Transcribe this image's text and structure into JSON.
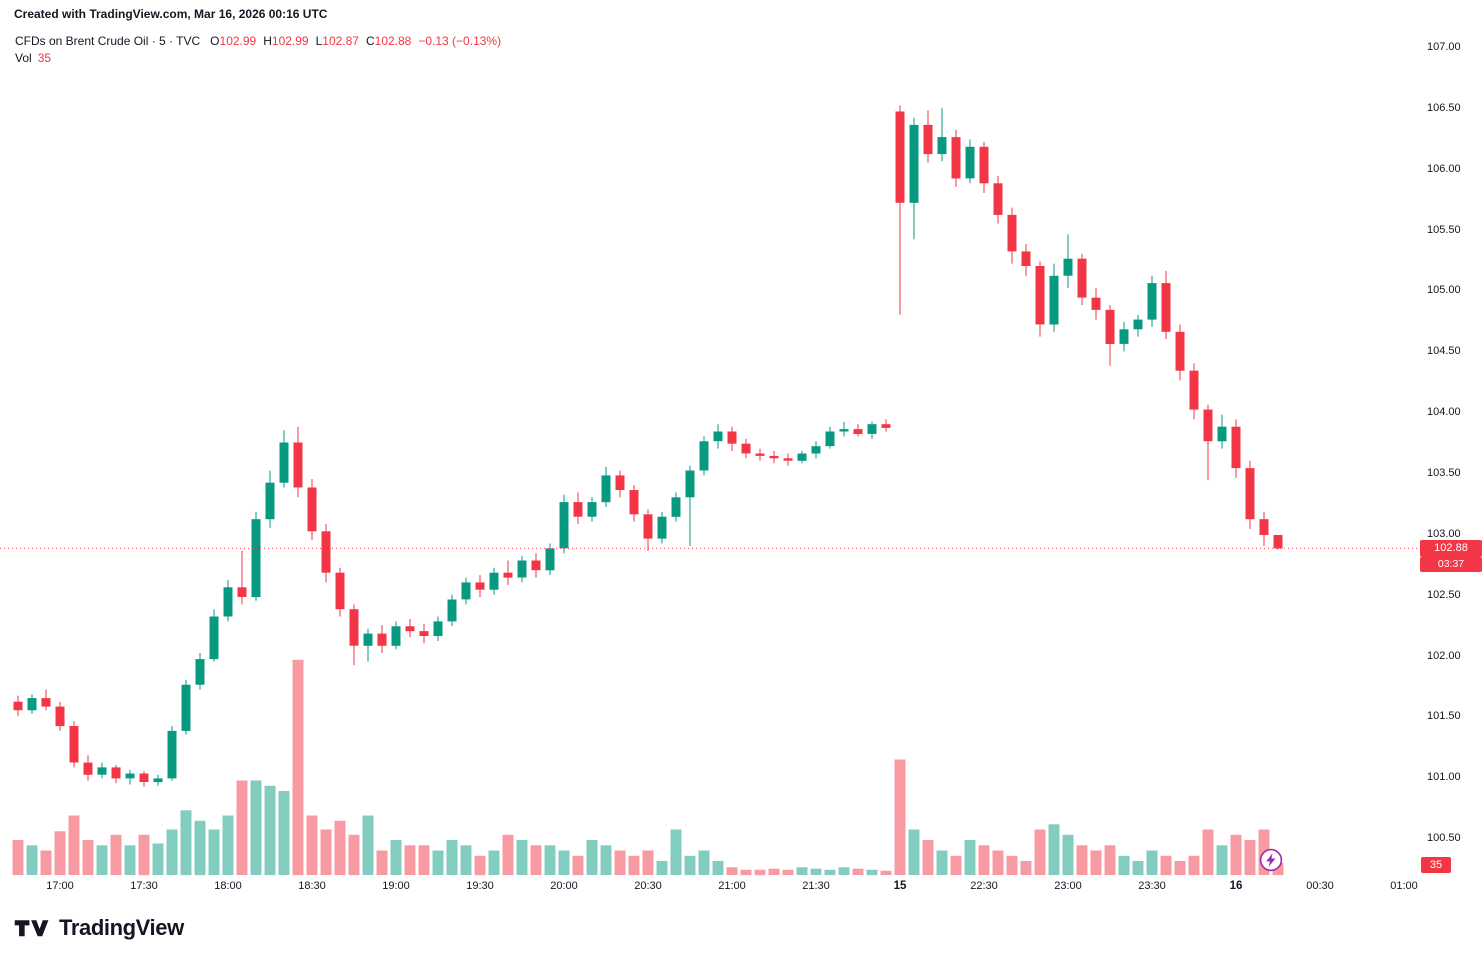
{
  "header": {
    "attribution": "Created with TradingView.com, Mar 16, 2026 00:16 UTC"
  },
  "legend": {
    "symbol": "CFDs on Brent Crude Oil · 5 · TVC",
    "o_label": "O",
    "o": "102.99",
    "h_label": "H",
    "h": "102.99",
    "l_label": "L",
    "l": "102.87",
    "c_label": "C",
    "c": "102.88",
    "change": "−0.13 (−0.13%)",
    "vol_label": "Vol",
    "vol_value": "35"
  },
  "badges": {
    "price": "102.88",
    "countdown": "03:37",
    "volume": "35"
  },
  "logo": {
    "text": "TradingView"
  },
  "colors": {
    "up": "#089981",
    "down": "#F23645",
    "vol_up": "rgba(8,153,129,0.5)",
    "vol_down": "rgba(242,54,69,0.5)",
    "text": "#131722",
    "badge_text": "#ffffff",
    "bolt": "#9c27b0"
  },
  "chart_data": {
    "type": "candlestick",
    "title": "CFDs on Brent Crude Oil",
    "interval": "5",
    "exchange": "TVC",
    "last": {
      "o": 102.99,
      "h": 102.99,
      "l": 102.87,
      "c": 102.88,
      "change": "−0.13 (−0.13%)",
      "volume": 35
    },
    "price_line": 102.88,
    "countdown": "03:37",
    "ylim": [
      100.2,
      107.15
    ],
    "grid": false,
    "y_ticks": [
      107.0,
      106.5,
      106.0,
      105.5,
      105.0,
      104.5,
      104.0,
      103.5,
      103.0,
      102.5,
      102.0,
      101.5,
      101.0,
      100.5
    ],
    "x_ticks": [
      {
        "label": "17:00",
        "i": 3
      },
      {
        "label": "17:30",
        "i": 9
      },
      {
        "label": "18:00",
        "i": 15
      },
      {
        "label": "18:30",
        "i": 21
      },
      {
        "label": "19:00",
        "i": 27
      },
      {
        "label": "19:30",
        "i": 33
      },
      {
        "label": "20:00",
        "i": 39
      },
      {
        "label": "20:30",
        "i": 45
      },
      {
        "label": "21:00",
        "i": 51
      },
      {
        "label": "21:30",
        "i": 57
      },
      {
        "label": "15",
        "i": 63,
        "bold": true
      },
      {
        "label": "22:30",
        "i": 69
      },
      {
        "label": "23:00",
        "i": 75
      },
      {
        "label": "23:30",
        "i": 81
      },
      {
        "label": "16",
        "i": 87,
        "bold": true
      },
      {
        "label": "00:30",
        "i": 93
      },
      {
        "label": "01:00",
        "i": 99
      }
    ],
    "candles_format": [
      "time",
      "open",
      "high",
      "low",
      "close",
      "volume"
    ],
    "candles": [
      [
        "16:45",
        101.62,
        101.67,
        101.5,
        101.55,
        100
      ],
      [
        "16:50",
        101.55,
        101.68,
        101.52,
        101.65,
        85
      ],
      [
        "16:55",
        101.65,
        101.72,
        101.55,
        101.58,
        70
      ],
      [
        "17:00",
        101.58,
        101.62,
        101.38,
        101.42,
        125
      ],
      [
        "17:05",
        101.42,
        101.46,
        101.08,
        101.12,
        170
      ],
      [
        "17:10",
        101.12,
        101.18,
        100.97,
        101.02,
        100
      ],
      [
        "17:15",
        101.02,
        101.12,
        100.99,
        101.08,
        85
      ],
      [
        "17:20",
        101.08,
        101.1,
        100.95,
        100.99,
        115
      ],
      [
        "17:25",
        100.99,
        101.06,
        100.94,
        101.03,
        85
      ],
      [
        "17:30",
        101.03,
        101.05,
        100.92,
        100.96,
        115
      ],
      [
        "17:35",
        100.96,
        101.02,
        100.93,
        100.99,
        90
      ],
      [
        "17:40",
        100.99,
        101.42,
        100.97,
        101.38,
        130
      ],
      [
        "17:45",
        101.38,
        101.8,
        101.35,
        101.76,
        185
      ],
      [
        "17:50",
        101.76,
        102.02,
        101.72,
        101.97,
        155
      ],
      [
        "17:55",
        101.97,
        102.38,
        101.95,
        102.32,
        130
      ],
      [
        "18:00",
        102.32,
        102.62,
        102.28,
        102.56,
        170
      ],
      [
        "18:05",
        102.56,
        102.86,
        102.42,
        102.48,
        270
      ],
      [
        "18:10",
        102.48,
        103.18,
        102.45,
        103.12,
        270
      ],
      [
        "18:15",
        103.12,
        103.52,
        103.05,
        103.42,
        255
      ],
      [
        "18:20",
        103.42,
        103.85,
        103.38,
        103.75,
        240
      ],
      [
        "18:25",
        103.75,
        103.88,
        103.3,
        103.38,
        615
      ],
      [
        "18:30",
        103.38,
        103.45,
        102.95,
        103.02,
        170
      ],
      [
        "18:35",
        103.02,
        103.08,
        102.6,
        102.68,
        130
      ],
      [
        "18:40",
        102.68,
        102.72,
        102.32,
        102.38,
        155
      ],
      [
        "18:45",
        102.38,
        102.42,
        101.92,
        102.08,
        115
      ],
      [
        "18:50",
        102.08,
        102.22,
        101.95,
        102.18,
        170
      ],
      [
        "18:55",
        102.18,
        102.25,
        102.02,
        102.08,
        70
      ],
      [
        "19:00",
        102.08,
        102.28,
        102.05,
        102.24,
        100
      ],
      [
        "19:05",
        102.24,
        102.3,
        102.15,
        102.2,
        85
      ],
      [
        "19:10",
        102.2,
        102.26,
        102.1,
        102.16,
        85
      ],
      [
        "19:15",
        102.16,
        102.32,
        102.12,
        102.28,
        70
      ],
      [
        "19:20",
        102.28,
        102.5,
        102.24,
        102.46,
        100
      ],
      [
        "19:25",
        102.46,
        102.64,
        102.42,
        102.6,
        85
      ],
      [
        "19:30",
        102.6,
        102.66,
        102.48,
        102.54,
        55
      ],
      [
        "19:35",
        102.54,
        102.72,
        102.5,
        102.68,
        70
      ],
      [
        "19:40",
        102.68,
        102.78,
        102.58,
        102.64,
        115
      ],
      [
        "19:45",
        102.64,
        102.82,
        102.6,
        102.78,
        100
      ],
      [
        "19:50",
        102.78,
        102.84,
        102.64,
        102.7,
        85
      ],
      [
        "19:55",
        102.7,
        102.92,
        102.66,
        102.88,
        85
      ],
      [
        "20:00",
        102.88,
        103.32,
        102.84,
        103.26,
        70
      ],
      [
        "20:05",
        103.26,
        103.34,
        103.08,
        103.14,
        55
      ],
      [
        "20:10",
        103.14,
        103.3,
        103.1,
        103.26,
        100
      ],
      [
        "20:15",
        103.26,
        103.55,
        103.22,
        103.48,
        85
      ],
      [
        "20:20",
        103.48,
        103.52,
        103.3,
        103.36,
        70
      ],
      [
        "20:25",
        103.36,
        103.4,
        103.1,
        103.16,
        55
      ],
      [
        "20:30",
        103.16,
        103.2,
        102.86,
        102.96,
        70
      ],
      [
        "20:35",
        102.96,
        103.18,
        102.92,
        103.14,
        40
      ],
      [
        "20:40",
        103.14,
        103.34,
        103.1,
        103.3,
        130
      ],
      [
        "20:45",
        103.3,
        103.56,
        102.9,
        103.52,
        55
      ],
      [
        "20:50",
        103.52,
        103.8,
        103.48,
        103.76,
        70
      ],
      [
        "20:55",
        103.76,
        103.9,
        103.7,
        103.84,
        40
      ],
      [
        "21:00",
        103.84,
        103.88,
        103.68,
        103.74,
        22
      ],
      [
        "21:05",
        103.74,
        103.78,
        103.62,
        103.66,
        15
      ],
      [
        "21:10",
        103.66,
        103.7,
        103.6,
        103.64,
        15
      ],
      [
        "21:15",
        103.64,
        103.68,
        103.58,
        103.62,
        18
      ],
      [
        "21:20",
        103.62,
        103.66,
        103.56,
        103.6,
        15
      ],
      [
        "21:25",
        103.6,
        103.68,
        103.58,
        103.66,
        22
      ],
      [
        "21:30",
        103.66,
        103.76,
        103.62,
        103.72,
        18
      ],
      [
        "21:35",
        103.72,
        103.88,
        103.7,
        103.84,
        15
      ],
      [
        "21:40",
        103.84,
        103.92,
        103.8,
        103.86,
        22
      ],
      [
        "21:45",
        103.86,
        103.9,
        103.8,
        103.82,
        18
      ],
      [
        "21:50",
        103.82,
        103.92,
        103.78,
        103.9,
        15
      ],
      [
        "21:55",
        103.9,
        103.94,
        103.84,
        103.87,
        12
      ],
      [
        "22:00",
        106.47,
        106.52,
        104.8,
        105.72,
        330
      ],
      [
        "22:05",
        105.72,
        106.42,
        105.42,
        106.36,
        130
      ],
      [
        "22:10",
        106.36,
        106.48,
        106.05,
        106.12,
        100
      ],
      [
        "22:15",
        106.12,
        106.5,
        106.06,
        106.26,
        70
      ],
      [
        "22:20",
        106.26,
        106.32,
        105.85,
        105.92,
        55
      ],
      [
        "22:25",
        105.92,
        106.24,
        105.88,
        106.18,
        100
      ],
      [
        "22:30",
        106.18,
        106.22,
        105.8,
        105.88,
        85
      ],
      [
        "22:35",
        105.88,
        105.94,
        105.55,
        105.62,
        70
      ],
      [
        "22:40",
        105.62,
        105.68,
        105.22,
        105.32,
        55
      ],
      [
        "22:45",
        105.32,
        105.38,
        105.12,
        105.2,
        40
      ],
      [
        "22:50",
        105.2,
        105.24,
        104.62,
        104.72,
        130
      ],
      [
        "22:55",
        104.72,
        105.22,
        104.66,
        105.12,
        145
      ],
      [
        "23:00",
        105.12,
        105.46,
        105.02,
        105.26,
        115
      ],
      [
        "23:05",
        105.26,
        105.3,
        104.88,
        104.94,
        85
      ],
      [
        "23:10",
        104.94,
        105.02,
        104.76,
        104.84,
        70
      ],
      [
        "23:15",
        104.84,
        104.88,
        104.38,
        104.56,
        85
      ],
      [
        "23:20",
        104.56,
        104.74,
        104.5,
        104.68,
        55
      ],
      [
        "23:25",
        104.68,
        104.8,
        104.62,
        104.76,
        40
      ],
      [
        "23:30",
        104.76,
        105.12,
        104.7,
        105.06,
        70
      ],
      [
        "23:35",
        105.06,
        105.16,
        104.6,
        104.66,
        55
      ],
      [
        "23:40",
        104.66,
        104.72,
        104.26,
        104.34,
        40
      ],
      [
        "23:45",
        104.34,
        104.4,
        103.94,
        104.02,
        55
      ],
      [
        "23:50",
        104.02,
        104.06,
        103.44,
        103.76,
        130
      ],
      [
        "23:55",
        103.76,
        103.98,
        103.7,
        103.88,
        85
      ],
      [
        "00:00",
        103.88,
        103.94,
        103.46,
        103.54,
        115
      ],
      [
        "00:05",
        103.54,
        103.6,
        103.04,
        103.12,
        100
      ],
      [
        "00:10",
        103.12,
        103.18,
        102.9,
        102.99,
        130
      ],
      [
        "00:15",
        102.99,
        102.99,
        102.87,
        102.88,
        35
      ]
    ]
  }
}
